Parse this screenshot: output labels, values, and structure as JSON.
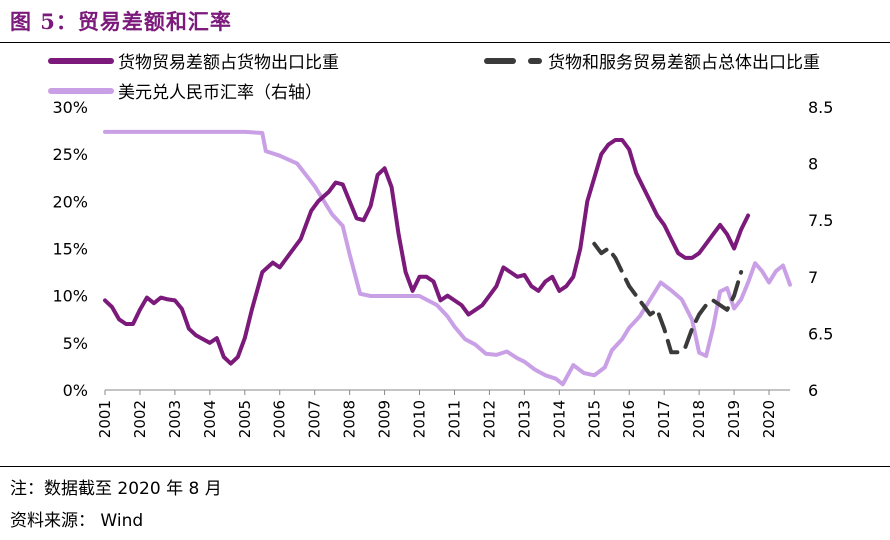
{
  "header": {
    "title": "图 5：贸易差额和汇率"
  },
  "footer": {
    "note_label": "注：数据截至",
    "note_value": "2020 年 8 月",
    "source_label": "资料来源：",
    "source_value": "Wind"
  },
  "colors": {
    "goods": "#7b1a7b",
    "rate": "#c9a0e6",
    "goods_services": "#3a3a3a"
  },
  "chart_data": {
    "type": "line",
    "legend": [
      "货物贸易差额占货物出口比重",
      "货物和服务贸易差额占总体出口比重",
      "美元兑人民币汇率（右轴）"
    ],
    "legend_placement": "top",
    "grid": false,
    "x_ticks": [
      "2001",
      "2002",
      "2003",
      "2004",
      "2005",
      "2006",
      "2007",
      "2008",
      "2009",
      "2010",
      "2011",
      "2012",
      "2013",
      "2014",
      "2015",
      "2016",
      "2017",
      "2018",
      "2019",
      "2020"
    ],
    "y_left": {
      "ticks": [
        "0%",
        "5%",
        "10%",
        "15%",
        "20%",
        "25%",
        "30%"
      ],
      "range": [
        0,
        30
      ],
      "unit": "%"
    },
    "y_right": {
      "ticks": [
        "6",
        "6.5",
        "7",
        "7.5",
        "8",
        "8.5"
      ],
      "range": [
        6,
        8.5
      ]
    },
    "series": [
      {
        "name": "货物贸易差额占货物出口比重",
        "axis": "left",
        "style": "solid",
        "points": [
          [
            2001.0,
            9.5
          ],
          [
            2001.2,
            8.8
          ],
          [
            2001.4,
            7.5
          ],
          [
            2001.6,
            7.0
          ],
          [
            2001.8,
            7.0
          ],
          [
            2002.0,
            8.5
          ],
          [
            2002.2,
            9.8
          ],
          [
            2002.4,
            9.2
          ],
          [
            2002.6,
            9.8
          ],
          [
            2002.8,
            9.6
          ],
          [
            2003.0,
            9.5
          ],
          [
            2003.2,
            8.6
          ],
          [
            2003.4,
            6.5
          ],
          [
            2003.6,
            5.8
          ],
          [
            2003.8,
            5.4
          ],
          [
            2004.0,
            5.0
          ],
          [
            2004.2,
            5.5
          ],
          [
            2004.4,
            3.5
          ],
          [
            2004.6,
            2.8
          ],
          [
            2004.8,
            3.5
          ],
          [
            2005.0,
            5.5
          ],
          [
            2005.2,
            8.5
          ],
          [
            2005.5,
            12.5
          ],
          [
            2005.8,
            13.5
          ],
          [
            2006.0,
            13.0
          ],
          [
            2006.3,
            14.5
          ],
          [
            2006.6,
            16.0
          ],
          [
            2006.9,
            19.0
          ],
          [
            2007.1,
            20.0
          ],
          [
            2007.4,
            21.0
          ],
          [
            2007.6,
            22.0
          ],
          [
            2007.8,
            21.8
          ],
          [
            2008.0,
            20.0
          ],
          [
            2008.2,
            18.2
          ],
          [
            2008.4,
            18.0
          ],
          [
            2008.6,
            19.5
          ],
          [
            2008.8,
            22.8
          ],
          [
            2009.0,
            23.5
          ],
          [
            2009.2,
            21.5
          ],
          [
            2009.4,
            16.5
          ],
          [
            2009.6,
            12.5
          ],
          [
            2009.8,
            10.5
          ],
          [
            2010.0,
            12.0
          ],
          [
            2010.2,
            12.0
          ],
          [
            2010.4,
            11.5
          ],
          [
            2010.6,
            9.5
          ],
          [
            2010.8,
            10.0
          ],
          [
            2011.0,
            9.5
          ],
          [
            2011.2,
            9.0
          ],
          [
            2011.4,
            8.0
          ],
          [
            2011.6,
            8.5
          ],
          [
            2011.8,
            9.0
          ],
          [
            2012.0,
            10.0
          ],
          [
            2012.2,
            11.0
          ],
          [
            2012.4,
            13.0
          ],
          [
            2012.6,
            12.5
          ],
          [
            2012.8,
            12.0
          ],
          [
            2013.0,
            12.2
          ],
          [
            2013.2,
            11.0
          ],
          [
            2013.4,
            10.5
          ],
          [
            2013.6,
            11.5
          ],
          [
            2013.8,
            12.0
          ],
          [
            2014.0,
            10.5
          ],
          [
            2014.2,
            11.0
          ],
          [
            2014.4,
            12.0
          ],
          [
            2014.6,
            15.0
          ],
          [
            2014.8,
            20.0
          ],
          [
            2015.0,
            22.5
          ],
          [
            2015.2,
            25.0
          ],
          [
            2015.4,
            26.0
          ],
          [
            2015.6,
            26.5
          ],
          [
            2015.8,
            26.5
          ],
          [
            2016.0,
            25.5
          ],
          [
            2016.2,
            23.0
          ],
          [
            2016.4,
            21.5
          ],
          [
            2016.6,
            20.0
          ],
          [
            2016.8,
            18.5
          ],
          [
            2017.0,
            17.5
          ],
          [
            2017.2,
            16.0
          ],
          [
            2017.4,
            14.5
          ],
          [
            2017.6,
            14.0
          ],
          [
            2017.8,
            14.0
          ],
          [
            2018.0,
            14.5
          ],
          [
            2018.2,
            15.5
          ],
          [
            2018.4,
            16.5
          ],
          [
            2018.6,
            17.5
          ],
          [
            2018.8,
            16.5
          ],
          [
            2019.0,
            15.0
          ],
          [
            2019.2,
            17.0
          ],
          [
            2019.4,
            18.5
          ]
        ]
      },
      {
        "name": "货物和服务贸易差额占总体出口比重",
        "axis": "left",
        "style": "dashed",
        "points": [
          [
            2015.0,
            15.5
          ],
          [
            2015.2,
            14.5
          ],
          [
            2015.4,
            15.0
          ],
          [
            2015.6,
            14.0
          ],
          [
            2015.8,
            12.5
          ],
          [
            2016.0,
            11.0
          ],
          [
            2016.2,
            10.0
          ],
          [
            2016.4,
            9.0
          ],
          [
            2016.6,
            8.0
          ],
          [
            2016.8,
            8.5
          ],
          [
            2017.0,
            6.5
          ],
          [
            2017.2,
            4.0
          ],
          [
            2017.4,
            4.0
          ],
          [
            2017.6,
            4.5
          ],
          [
            2017.8,
            6.5
          ],
          [
            2018.0,
            8.0
          ],
          [
            2018.2,
            9.0
          ],
          [
            2018.4,
            9.5
          ],
          [
            2018.6,
            9.0
          ],
          [
            2018.8,
            8.5
          ],
          [
            2019.0,
            10.0
          ],
          [
            2019.2,
            12.5
          ]
        ]
      },
      {
        "name": "美元兑人民币汇率（右轴）",
        "axis": "right",
        "style": "solid",
        "points": [
          [
            2001.0,
            8.28
          ],
          [
            2002.0,
            8.28
          ],
          [
            2003.0,
            8.28
          ],
          [
            2004.0,
            8.28
          ],
          [
            2005.0,
            8.28
          ],
          [
            2005.5,
            8.27
          ],
          [
            2005.6,
            8.11
          ],
          [
            2006.0,
            8.07
          ],
          [
            2006.5,
            8.0
          ],
          [
            2007.0,
            7.8
          ],
          [
            2007.5,
            7.55
          ],
          [
            2007.8,
            7.45
          ],
          [
            2008.0,
            7.2
          ],
          [
            2008.3,
            6.85
          ],
          [
            2008.6,
            6.83
          ],
          [
            2009.0,
            6.83
          ],
          [
            2009.5,
            6.83
          ],
          [
            2010.0,
            6.83
          ],
          [
            2010.5,
            6.75
          ],
          [
            2010.8,
            6.65
          ],
          [
            2011.0,
            6.56
          ],
          [
            2011.3,
            6.45
          ],
          [
            2011.6,
            6.4
          ],
          [
            2011.9,
            6.32
          ],
          [
            2012.2,
            6.31
          ],
          [
            2012.5,
            6.34
          ],
          [
            2012.8,
            6.28
          ],
          [
            2013.0,
            6.25
          ],
          [
            2013.3,
            6.18
          ],
          [
            2013.6,
            6.13
          ],
          [
            2013.9,
            6.1
          ],
          [
            2014.1,
            6.05
          ],
          [
            2014.4,
            6.22
          ],
          [
            2014.7,
            6.15
          ],
          [
            2015.0,
            6.13
          ],
          [
            2015.3,
            6.2
          ],
          [
            2015.5,
            6.35
          ],
          [
            2015.8,
            6.45
          ],
          [
            2016.0,
            6.55
          ],
          [
            2016.3,
            6.65
          ],
          [
            2016.6,
            6.8
          ],
          [
            2016.9,
            6.95
          ],
          [
            2017.2,
            6.88
          ],
          [
            2017.5,
            6.8
          ],
          [
            2017.8,
            6.62
          ],
          [
            2018.0,
            6.33
          ],
          [
            2018.2,
            6.3
          ],
          [
            2018.4,
            6.55
          ],
          [
            2018.6,
            6.87
          ],
          [
            2018.8,
            6.9
          ],
          [
            2019.0,
            6.72
          ],
          [
            2019.2,
            6.8
          ],
          [
            2019.4,
            6.95
          ],
          [
            2019.6,
            7.12
          ],
          [
            2019.8,
            7.05
          ],
          [
            2020.0,
            6.95
          ],
          [
            2020.2,
            7.05
          ],
          [
            2020.4,
            7.1
          ],
          [
            2020.6,
            6.93
          ]
        ]
      }
    ]
  }
}
